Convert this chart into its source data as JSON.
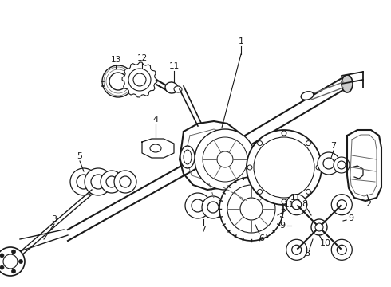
{
  "fig_width": 4.9,
  "fig_height": 3.6,
  "dpi": 100,
  "color_main": "#1a1a1a",
  "color_gray": "#666666",
  "bg": "white"
}
